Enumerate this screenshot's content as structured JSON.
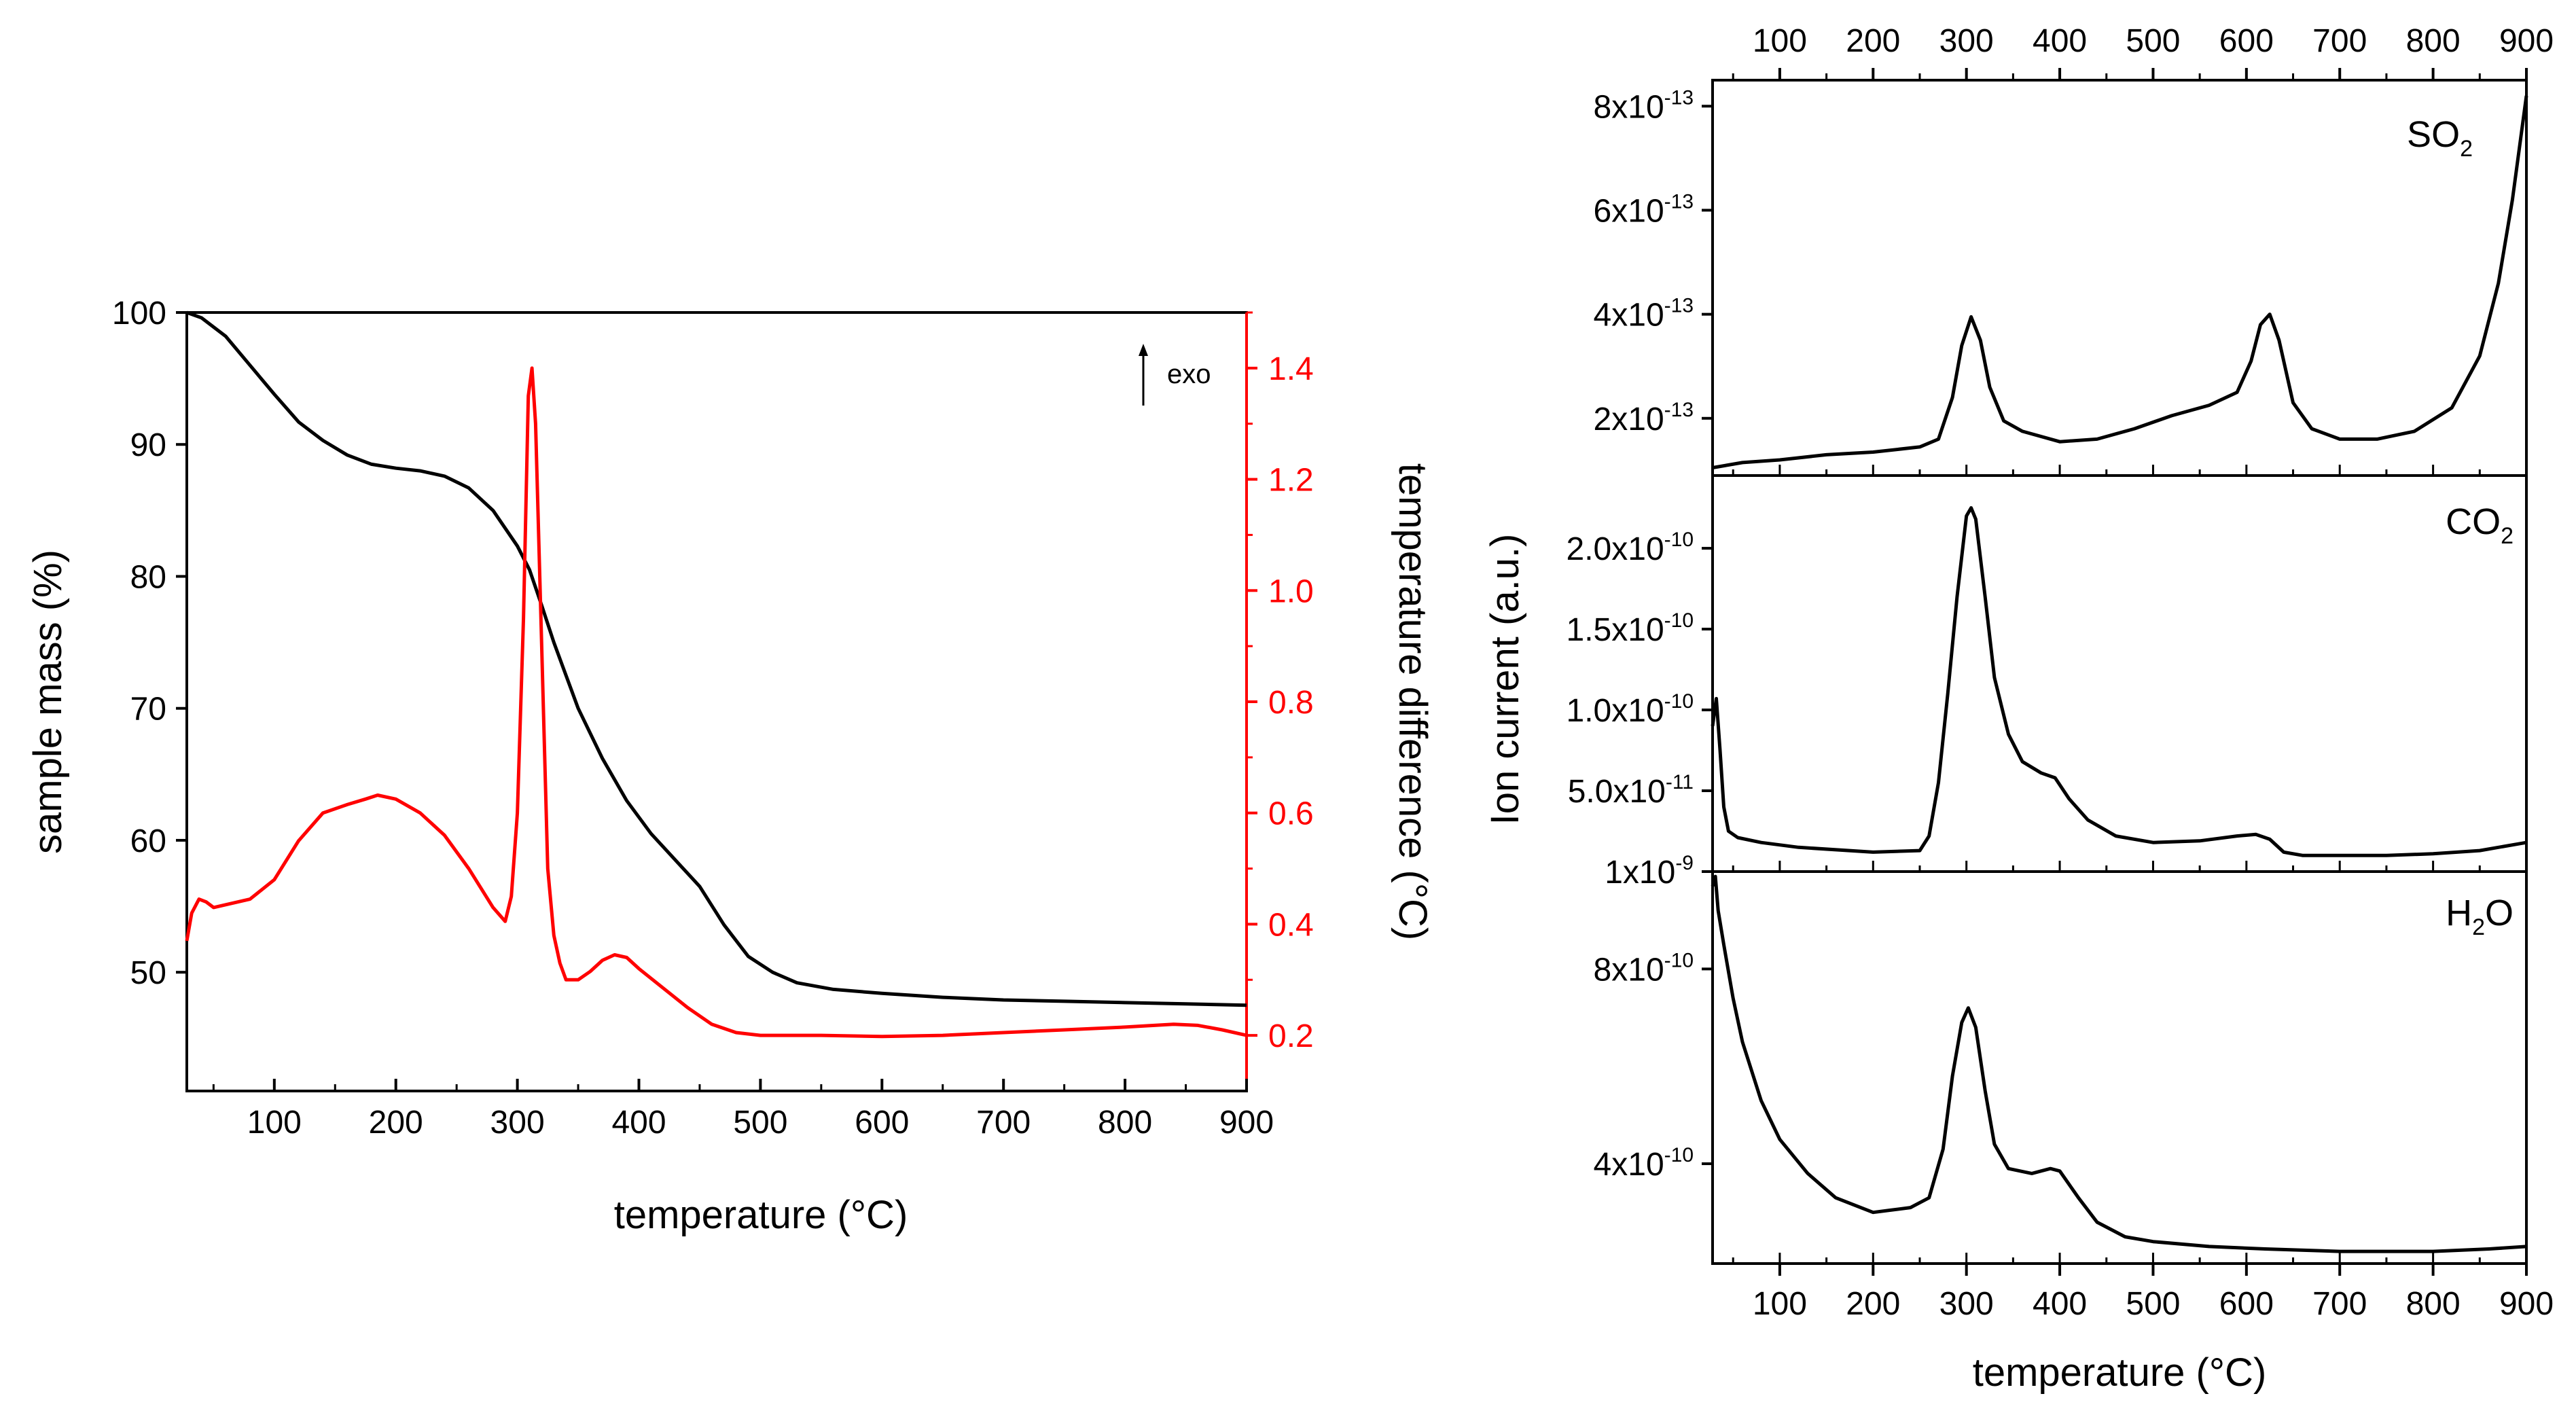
{
  "chart_data": [
    {
      "id": "tga_dta",
      "type": "line",
      "xlabel": "temperature (°C)",
      "ylabel_left": "sample mass (%)",
      "ylabel_right": "temperature difference (°C)",
      "xlim": [
        28,
        900
      ],
      "ylim_left": [
        41,
        100
      ],
      "ylim_right": [
        0.1,
        1.5
      ],
      "x_ticks": [
        100,
        200,
        300,
        400,
        500,
        600,
        700,
        800,
        900
      ],
      "y_left_ticks": [
        50,
        60,
        70,
        80,
        90,
        100
      ],
      "y_right_ticks": [
        0.2,
        0.4,
        0.6,
        0.8,
        1.0,
        1.2,
        1.4
      ],
      "y_right_tick_labels": [
        "0.2",
        "0.4",
        "0.6",
        "0.8",
        "1.0",
        "1.2",
        "1.4"
      ],
      "annotation": "exo",
      "right_axis_color": "#ff0000",
      "series": [
        {
          "name": "sample mass",
          "axis": "left",
          "color": "#000000",
          "points": [
            [
              28,
              100
            ],
            [
              40,
              99.6
            ],
            [
              60,
              98.2
            ],
            [
              80,
              96
            ],
            [
              100,
              93.8
            ],
            [
              120,
              91.7
            ],
            [
              140,
              90.3
            ],
            [
              160,
              89.2
            ],
            [
              180,
              88.5
            ],
            [
              200,
              88.2
            ],
            [
              220,
              88
            ],
            [
              240,
              87.6
            ],
            [
              260,
              86.7
            ],
            [
              280,
              85
            ],
            [
              300,
              82.3
            ],
            [
              310,
              80.5
            ],
            [
              320,
              77.8
            ],
            [
              330,
              75
            ],
            [
              340,
              72.5
            ],
            [
              350,
              70
            ],
            [
              370,
              66.2
            ],
            [
              390,
              63
            ],
            [
              410,
              60.5
            ],
            [
              430,
              58.5
            ],
            [
              450,
              56.5
            ],
            [
              470,
              53.6
            ],
            [
              490,
              51.2
            ],
            [
              510,
              50
            ],
            [
              530,
              49.2
            ],
            [
              560,
              48.7
            ],
            [
              600,
              48.4
            ],
            [
              650,
              48.1
            ],
            [
              700,
              47.9
            ],
            [
              750,
              47.8
            ],
            [
              800,
              47.7
            ],
            [
              850,
              47.6
            ],
            [
              900,
              47.5
            ]
          ]
        },
        {
          "name": "temperature difference",
          "axis": "right",
          "color": "#ff0000",
          "points": [
            [
              28,
              0.37
            ],
            [
              32,
              0.42
            ],
            [
              38,
              0.445
            ],
            [
              44,
              0.44
            ],
            [
              50,
              0.43
            ],
            [
              60,
              0.435
            ],
            [
              80,
              0.445
            ],
            [
              100,
              0.48
            ],
            [
              120,
              0.55
            ],
            [
              140,
              0.6
            ],
            [
              160,
              0.615
            ],
            [
              175,
              0.625
            ],
            [
              185,
              0.632
            ],
            [
              200,
              0.625
            ],
            [
              220,
              0.6
            ],
            [
              240,
              0.56
            ],
            [
              260,
              0.5
            ],
            [
              280,
              0.43
            ],
            [
              290,
              0.405
            ],
            [
              295,
              0.45
            ],
            [
              300,
              0.6
            ],
            [
              305,
              0.95
            ],
            [
              309,
              1.35
            ],
            [
              312,
              1.4
            ],
            [
              315,
              1.3
            ],
            [
              320,
              0.9
            ],
            [
              325,
              0.5
            ],
            [
              330,
              0.38
            ],
            [
              335,
              0.33
            ],
            [
              340,
              0.3
            ],
            [
              350,
              0.3
            ],
            [
              360,
              0.315
            ],
            [
              370,
              0.335
            ],
            [
              380,
              0.345
            ],
            [
              390,
              0.34
            ],
            [
              400,
              0.32
            ],
            [
              420,
              0.285
            ],
            [
              440,
              0.25
            ],
            [
              460,
              0.22
            ],
            [
              480,
              0.205
            ],
            [
              500,
              0.2
            ],
            [
              550,
              0.2
            ],
            [
              600,
              0.198
            ],
            [
              650,
              0.2
            ],
            [
              700,
              0.205
            ],
            [
              750,
              0.21
            ],
            [
              800,
              0.215
            ],
            [
              840,
              0.22
            ],
            [
              860,
              0.218
            ],
            [
              880,
              0.21
            ],
            [
              900,
              0.2
            ]
          ]
        }
      ]
    },
    {
      "id": "ms_so2",
      "type": "line",
      "label": "SO",
      "label_sub": "2",
      "xlim": [
        28,
        900
      ],
      "ylim": [
        9e-14,
        8.5e-13
      ],
      "y_ticks": [
        2e-13,
        4e-13,
        6e-13,
        8e-13
      ],
      "y_tick_labels": [
        {
          "m": "2x10",
          "e": "-13"
        },
        {
          "m": "4x10",
          "e": "-13"
        },
        {
          "m": "6x10",
          "e": "-13"
        },
        {
          "m": "8x10",
          "e": "-13"
        }
      ],
      "x_ticks_top": [
        100,
        200,
        300,
        400,
        500,
        600,
        700,
        800,
        900
      ],
      "color": "#000000",
      "points": [
        [
          28,
          1.05e-13
        ],
        [
          60,
          1.15e-13
        ],
        [
          100,
          1.2e-13
        ],
        [
          150,
          1.3e-13
        ],
        [
          200,
          1.35e-13
        ],
        [
          250,
          1.45e-13
        ],
        [
          270,
          1.6e-13
        ],
        [
          285,
          2.4e-13
        ],
        [
          295,
          3.4e-13
        ],
        [
          305,
          3.95e-13
        ],
        [
          315,
          3.5e-13
        ],
        [
          325,
          2.6e-13
        ],
        [
          340,
          1.95e-13
        ],
        [
          360,
          1.75e-13
        ],
        [
          400,
          1.55e-13
        ],
        [
          440,
          1.6e-13
        ],
        [
          480,
          1.8e-13
        ],
        [
          520,
          2.05e-13
        ],
        [
          560,
          2.25e-13
        ],
        [
          590,
          2.5e-13
        ],
        [
          605,
          3.1e-13
        ],
        [
          615,
          3.8e-13
        ],
        [
          625,
          4e-13
        ],
        [
          635,
          3.5e-13
        ],
        [
          650,
          2.3e-13
        ],
        [
          670,
          1.8e-13
        ],
        [
          700,
          1.6e-13
        ],
        [
          740,
          1.6e-13
        ],
        [
          780,
          1.75e-13
        ],
        [
          820,
          2.2e-13
        ],
        [
          850,
          3.2e-13
        ],
        [
          870,
          4.6e-13
        ],
        [
          885,
          6.2e-13
        ],
        [
          900,
          8.2e-13
        ]
      ]
    },
    {
      "id": "ms_co2",
      "type": "line",
      "label": "CO",
      "label_sub": "2",
      "xlim": [
        28,
        900
      ],
      "ylim": [
        0,
        2.45e-10
      ],
      "y_ticks": [
        5e-11,
        1e-10,
        1.5e-10,
        2e-10
      ],
      "y_tick_labels": [
        {
          "m": "5.0x10",
          "e": "-11"
        },
        {
          "m": "1.0x10",
          "e": "-10"
        },
        {
          "m": "1.5x10",
          "e": "-10"
        },
        {
          "m": "2.0x10",
          "e": "-10"
        }
      ],
      "color": "#000000",
      "points": [
        [
          28,
          9e-11
        ],
        [
          32,
          1.07e-10
        ],
        [
          36,
          7.5e-11
        ],
        [
          40,
          4e-11
        ],
        [
          45,
          2.5e-11
        ],
        [
          55,
          2.1e-11
        ],
        [
          80,
          1.8e-11
        ],
        [
          120,
          1.5e-11
        ],
        [
          200,
          1.2e-11
        ],
        [
          250,
          1.3e-11
        ],
        [
          260,
          2.2e-11
        ],
        [
          270,
          5.5e-11
        ],
        [
          280,
          1.1e-10
        ],
        [
          290,
          1.7e-10
        ],
        [
          300,
          2.2e-10
        ],
        [
          305,
          2.25e-10
        ],
        [
          310,
          2.18e-10
        ],
        [
          320,
          1.7e-10
        ],
        [
          330,
          1.2e-10
        ],
        [
          345,
          8.5e-11
        ],
        [
          360,
          6.8e-11
        ],
        [
          380,
          6.1e-11
        ],
        [
          395,
          5.8e-11
        ],
        [
          410,
          4.5e-11
        ],
        [
          430,
          3.2e-11
        ],
        [
          460,
          2.2e-11
        ],
        [
          500,
          1.8e-11
        ],
        [
          550,
          1.9e-11
        ],
        [
          590,
          2.2e-11
        ],
        [
          610,
          2.3e-11
        ],
        [
          625,
          2e-11
        ],
        [
          640,
          1.2e-11
        ],
        [
          660,
          1e-11
        ],
        [
          700,
          1e-11
        ],
        [
          750,
          1e-11
        ],
        [
          800,
          1.1e-11
        ],
        [
          850,
          1.3e-11
        ],
        [
          900,
          1.8e-11
        ]
      ]
    },
    {
      "id": "ms_h2o",
      "type": "line",
      "label": "H",
      "label_sub": "2",
      "label_rest": "O",
      "xlim": [
        28,
        900
      ],
      "ylim": [
        1.95e-10,
        1e-09
      ],
      "y_ticks": [
        4e-10,
        8e-10,
        1e-09
      ],
      "y_tick_labels": [
        {
          "m": "4x10",
          "e": "-10"
        },
        {
          "m": "8x10",
          "e": "-10"
        },
        {
          "m": "1x10",
          "e": "-9"
        }
      ],
      "xlabel": "temperature (°C)",
      "ylabel": "Ion current (a.u.)",
      "x_ticks": [
        100,
        200,
        300,
        400,
        500,
        600,
        700,
        800,
        900
      ],
      "color": "#000000",
      "points": [
        [
          28,
          9.7e-10
        ],
        [
          31,
          9.9e-10
        ],
        [
          34,
          9.2e-10
        ],
        [
          40,
          8.5e-10
        ],
        [
          50,
          7.4e-10
        ],
        [
          60,
          6.5e-10
        ],
        [
          80,
          5.3e-10
        ],
        [
          100,
          4.5e-10
        ],
        [
          130,
          3.8e-10
        ],
        [
          160,
          3.3e-10
        ],
        [
          200,
          3e-10
        ],
        [
          240,
          3.1e-10
        ],
        [
          260,
          3.3e-10
        ],
        [
          275,
          4.3e-10
        ],
        [
          285,
          5.8e-10
        ],
        [
          295,
          6.9e-10
        ],
        [
          302,
          7.2e-10
        ],
        [
          310,
          6.8e-10
        ],
        [
          320,
          5.5e-10
        ],
        [
          330,
          4.4e-10
        ],
        [
          345,
          3.9e-10
        ],
        [
          370,
          3.8e-10
        ],
        [
          390,
          3.9e-10
        ],
        [
          400,
          3.85e-10
        ],
        [
          420,
          3.3e-10
        ],
        [
          440,
          2.8e-10
        ],
        [
          470,
          2.5e-10
        ],
        [
          500,
          2.4e-10
        ],
        [
          560,
          2.3e-10
        ],
        [
          620,
          2.25e-10
        ],
        [
          700,
          2.2e-10
        ],
        [
          800,
          2.2e-10
        ],
        [
          860,
          2.25e-10
        ],
        [
          900,
          2.3e-10
        ]
      ]
    }
  ]
}
